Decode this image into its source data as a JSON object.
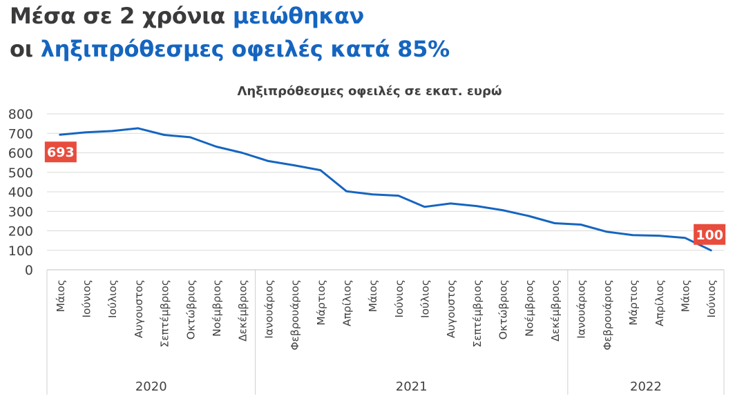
{
  "headline": {
    "line1_dark": "Μέσα σε 2 χρόνια ",
    "line1_blue": "μειώθηκαν",
    "line2_dark": "οι ",
    "line2_blue": "ληξιπρόθεσμες οφειλές κατά 85%"
  },
  "colors": {
    "title_dark": "#3a3a3c",
    "accent_blue": "#1565c0",
    "line": "#1565c0",
    "label_bg": "#e84c3d",
    "grid": "#d9d9d9"
  },
  "chart_data": {
    "type": "line",
    "title": "Ληξιπρόθεσμες οφειλές σε εκατ. ευρώ",
    "ylim": [
      0,
      800
    ],
    "yticks": [
      "0",
      "100",
      "200",
      "300",
      "400",
      "500",
      "600",
      "700",
      "800"
    ],
    "grid": true,
    "categories": [
      "Μάιος",
      "Ιούνιος",
      "Ιούλιος",
      "Αυγουστος",
      "Σεπτέμβριος",
      "Οκτώβριος",
      "Νοέμβριος",
      "Δεκέμβριος",
      "Ιανουάριος",
      "Φεβρουάριος",
      "Μάρτιος",
      "Απρίλιος",
      "Μάιος",
      "Ιούνιος",
      "Ιούλιος",
      "Αυγουστος",
      "Σεπτέμβριος",
      "Οκτώβριος",
      "Νοέμβριος",
      "Δεκέμβριος",
      "Ιανουάριος",
      "Φεβρουάριος",
      "Μάρτιος",
      "Απρίλιος",
      "Μάιος",
      "Ιούνιος"
    ],
    "years": [
      {
        "label": "2020",
        "count": 8
      },
      {
        "label": "2021",
        "count": 12
      },
      {
        "label": "2022",
        "count": 6
      }
    ],
    "series": [
      {
        "values": [
          693,
          705,
          712,
          726,
          692,
          680,
          632,
          600,
          558,
          536,
          511,
          403,
          387,
          380,
          323,
          340,
          327,
          306,
          276,
          239,
          232,
          195,
          178,
          175,
          164,
          100
        ]
      }
    ],
    "data_labels": [
      {
        "index": 0,
        "text": "693"
      },
      {
        "index": 25,
        "text": "100"
      }
    ]
  }
}
